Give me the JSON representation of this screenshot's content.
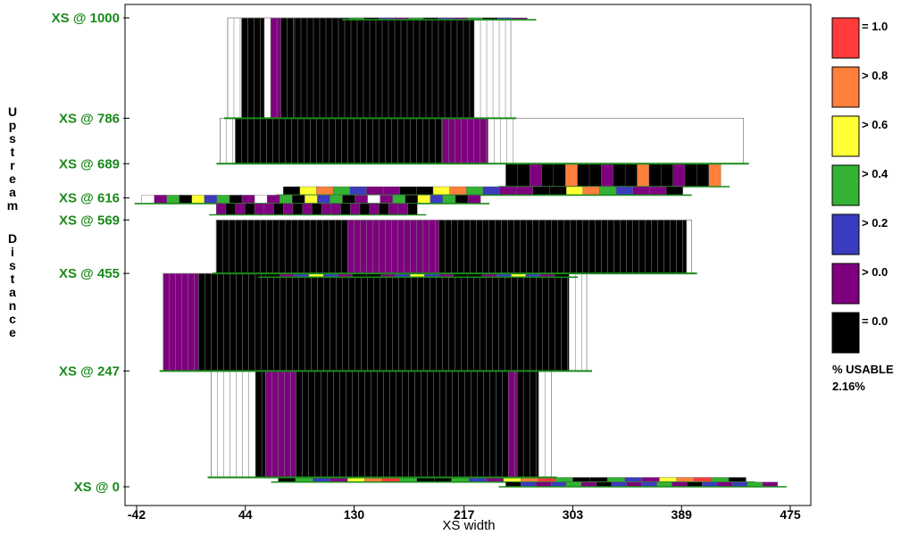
{
  "chart_data": {
    "type": "heatmap",
    "xlabel": "XS width",
    "ylabel": "Upstream Distance",
    "x_ticks": [
      "-42",
      "44",
      "130",
      "217",
      "303",
      "389",
      "475"
    ],
    "xlim": [
      -42,
      475
    ],
    "y_ticks": [
      "XS @ 1000",
      "XS @ 786",
      "XS @ 689",
      "XS @ 616",
      "XS @ 569",
      "XS @ 455",
      "XS @ 247",
      "XS @ 0"
    ],
    "y_tick_values": [
      1000,
      786,
      689,
      616,
      569,
      455,
      247,
      0
    ],
    "ylim": [
      0,
      1000
    ],
    "legend": [
      {
        "label": "= 1.0",
        "color": "#ff3b3b"
      },
      {
        "label": "> 0.8",
        "color": "#ff7f3b"
      },
      {
        "label": "> 0.6",
        "color": "#ffff33"
      },
      {
        "label": "> 0.4",
        "color": "#33b233"
      },
      {
        "label": "> 0.2",
        "color": "#3b3bbf"
      },
      {
        "label": "> 0.0",
        "color": "#7f007f"
      },
      {
        "label": "= 0.0",
        "color": "#000000"
      }
    ],
    "usable_label": "% USABLE",
    "usable_value": "2.16%",
    "sections": [
      {
        "y_top": 1000,
        "y_bottom": 786,
        "x_left": 30,
        "x_right": 254,
        "cells": [
          [
            30,
            41,
            "white"
          ],
          [
            41,
            59,
            "black"
          ],
          [
            59,
            64,
            "white"
          ],
          [
            64,
            72,
            "purple"
          ],
          [
            72,
            83,
            "black"
          ],
          [
            83,
            225,
            "black"
          ],
          [
            225,
            254,
            "white"
          ]
        ]
      },
      {
        "y_top": 786,
        "y_bottom": 689,
        "x_left": 24,
        "x_right": 438,
        "cells": [
          [
            24,
            36,
            "white"
          ],
          [
            36,
            200,
            "black"
          ],
          [
            200,
            236,
            "purple"
          ],
          [
            236,
            260,
            "white"
          ]
        ]
      },
      {
        "y_top": 569,
        "y_bottom": 455,
        "x_left": 21,
        "x_right": 397,
        "cells": [
          [
            21,
            125,
            "black"
          ],
          [
            125,
            197,
            "purple"
          ],
          [
            197,
            393,
            "black"
          ],
          [
            393,
            397,
            "white"
          ]
        ]
      },
      {
        "y_top": 455,
        "y_bottom": 247,
        "x_left": -21,
        "x_right": 314,
        "cells": [
          [
            -21,
            7,
            "purple"
          ],
          [
            7,
            300,
            "black"
          ],
          [
            300,
            314,
            "white"
          ]
        ]
      },
      {
        "y_top": 247,
        "y_bottom": 20,
        "x_left": 17,
        "x_right": 286,
        "cells": [
          [
            17,
            52,
            "white"
          ],
          [
            52,
            60,
            "black"
          ],
          [
            60,
            84,
            "purple"
          ],
          [
            84,
            252,
            "black"
          ],
          [
            252,
            259,
            "purple"
          ],
          [
            259,
            276,
            "black"
          ],
          [
            276,
            286,
            "white"
          ]
        ]
      }
    ]
  }
}
